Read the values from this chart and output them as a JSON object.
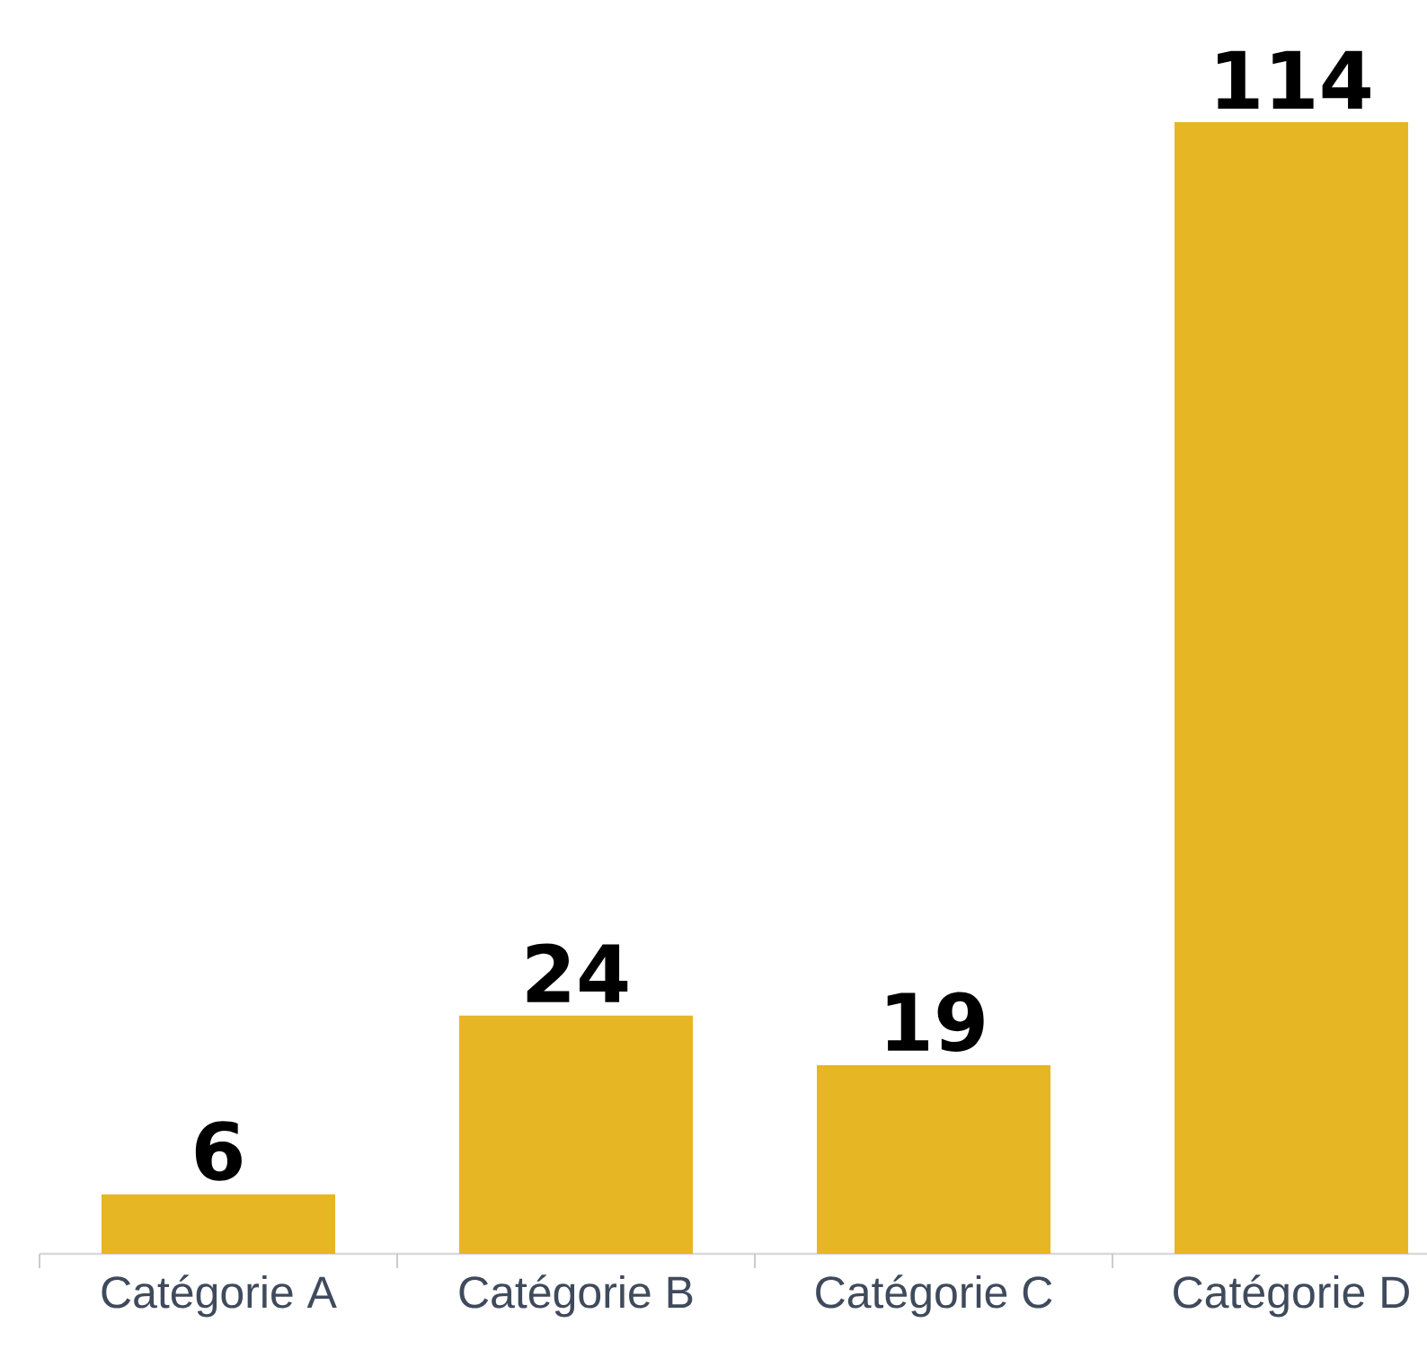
{
  "chart_data": {
    "type": "bar",
    "categories": [
      "Catégorie A",
      "Catégorie B",
      "Catégorie C",
      "Catégorie D"
    ],
    "values": [
      6,
      24,
      19,
      114
    ],
    "color": "#e6b624",
    "data_labels": true
  }
}
